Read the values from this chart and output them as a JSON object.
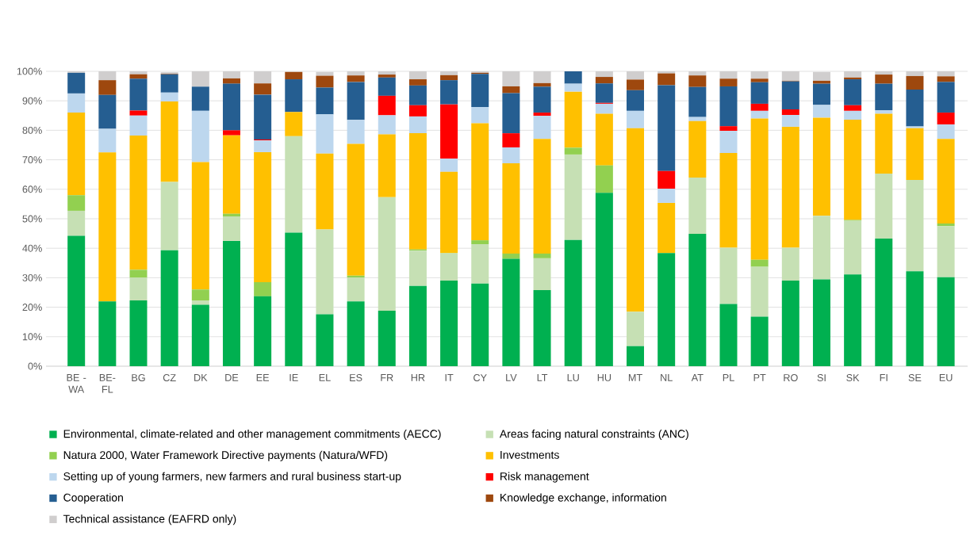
{
  "chart_data": {
    "type": "bar",
    "stacked": true,
    "grid": "y",
    "legend": "bottom",
    "categories": [
      "BE - WA",
      "BE-FL",
      "BG",
      "CZ",
      "DK",
      "DE",
      "EE",
      "IE",
      "EL",
      "ES",
      "FR",
      "HR",
      "IT",
      "CY",
      "LV",
      "LT",
      "LU",
      "HU",
      "MT",
      "NL",
      "AT",
      "PL",
      "PT",
      "RO",
      "SI",
      "SK",
      "FI",
      "SE",
      "EU"
    ],
    "ylim": [
      0,
      100
    ],
    "yticks": [
      {
        "value": 0,
        "label": "0%"
      },
      {
        "value": 10,
        "label": "10%"
      },
      {
        "value": 20,
        "label": "20%"
      },
      {
        "value": 30,
        "label": "30%"
      },
      {
        "value": 40,
        "label": "40%"
      },
      {
        "value": 50,
        "label": "50%"
      },
      {
        "value": 60,
        "label": "60%"
      },
      {
        "value": 70,
        "label": "70%"
      },
      {
        "value": 80,
        "label": "80%"
      },
      {
        "value": 90,
        "label": "90%"
      },
      {
        "value": 100,
        "label": "100%"
      }
    ],
    "series": [
      {
        "name": "Environmental, climate-related and other management commitments (AECC)",
        "color": "#00b050",
        "values": [
          44.2,
          22,
          22.3,
          39.3,
          20.8,
          42.5,
          23.7,
          45.3,
          17.6,
          22,
          18.8,
          27.2,
          29,
          28,
          36.4,
          25.8,
          42.8,
          58.8,
          6.8,
          38.4,
          44.9,
          21.1,
          16.8,
          29,
          29.4,
          31.1,
          43.3,
          32.2,
          30.2
        ]
      },
      {
        "name": "Areas facing natural constraints (ANC)",
        "color": "#c6e0b4",
        "values": [
          8.5,
          0,
          7.7,
          23.2,
          1.5,
          8.3,
          0,
          32.7,
          28.8,
          8.1,
          38.5,
          12,
          9.3,
          13.4,
          0,
          10.8,
          29,
          0,
          11.7,
          0,
          19.1,
          19.1,
          16.9,
          11.2,
          21.6,
          18.2,
          22,
          31,
          17.3
        ]
      },
      {
        "name": "Natura 2000, Water Framework Directive payments (Natura/WFD)",
        "color": "#92d050",
        "values": [
          5.3,
          0,
          2.7,
          0,
          3.7,
          0.9,
          4.8,
          0,
          null,
          0.6,
          0,
          0.4,
          0.1,
          1.3,
          1.8,
          1.6,
          2.3,
          9.3,
          0,
          0,
          0,
          0,
          2.4,
          0,
          null,
          0.3,
          0,
          0,
          0.9
        ]
      },
      {
        "name": "Investments",
        "color": "#ffc000",
        "values": [
          28,
          50.5,
          45.5,
          27.3,
          43.2,
          26.6,
          44.1,
          8.2,
          25.7,
          44.7,
          21.3,
          39.4,
          27.5,
          39.7,
          30.6,
          38.9,
          19,
          17.5,
          62.2,
          17,
          19.1,
          32.1,
          47.9,
          41,
          33.3,
          34,
          20.3,
          17.5,
          28.7
        ]
      },
      {
        "name": "Setting up of young farmers, new farmers and rural business start-up",
        "color": "#bdd7ee",
        "values": [
          6.5,
          8,
          6.8,
          3,
          17.4,
          0,
          4,
          0,
          13.3,
          8.1,
          6.5,
          5.7,
          4.5,
          5.5,
          5.4,
          7.8,
          2.7,
          3.4,
          5.9,
          4.8,
          1.4,
          7.5,
          2.6,
          4,
          4.3,
          3,
          1.2,
          0.6,
          4.9
        ]
      },
      {
        "name": "Risk management",
        "color": "#ff0000",
        "values": [
          0,
          0,
          1.7,
          0,
          0,
          1.7,
          0.3,
          0,
          0,
          0,
          6.6,
          3.8,
          18.4,
          0,
          4.8,
          1.1,
          0,
          0.3,
          0,
          6,
          0,
          1.6,
          2.4,
          1.9,
          0,
          1.9,
          0,
          0,
          4
        ]
      },
      {
        "name": "Cooperation",
        "color": "#255e91",
        "values": [
          7,
          11.5,
          10.8,
          6.2,
          8.2,
          15.8,
          15.2,
          11.1,
          9.1,
          12.9,
          6.2,
          6.7,
          8.2,
          11.2,
          13.6,
          8.8,
          4.2,
          6.6,
          7,
          29.1,
          10.2,
          13.5,
          7.3,
          9.5,
          7.2,
          8.8,
          9,
          12.5,
          10.4
        ]
      },
      {
        "name": "Knowledge exchange, information",
        "color": "#9e480e",
        "values": [
          0,
          5,
          1.5,
          0.2,
          0,
          1.8,
          3.8,
          2.5,
          4,
          2.2,
          1,
          2.1,
          1.7,
          0.4,
          2.3,
          1.2,
          0,
          2.2,
          3.6,
          4,
          3.9,
          2.6,
          1.2,
          0.2,
          1,
          0.6,
          3.1,
          4.6,
          1.9
        ]
      },
      {
        "name": "Technical assistance (EAFRD only)",
        "color": "#d0cece",
        "values": [
          0.5,
          3,
          1,
          0.5,
          5.2,
          2.4,
          4.1,
          null,
          1.3,
          1.4,
          1.1,
          2.7,
          1.3,
          0.5,
          5.1,
          4,
          0,
          1.9,
          2.8,
          0.7,
          1.4,
          2.5,
          2.5,
          3.2,
          3,
          2.1,
          1.1,
          1.6,
          1.7
        ]
      }
    ]
  }
}
